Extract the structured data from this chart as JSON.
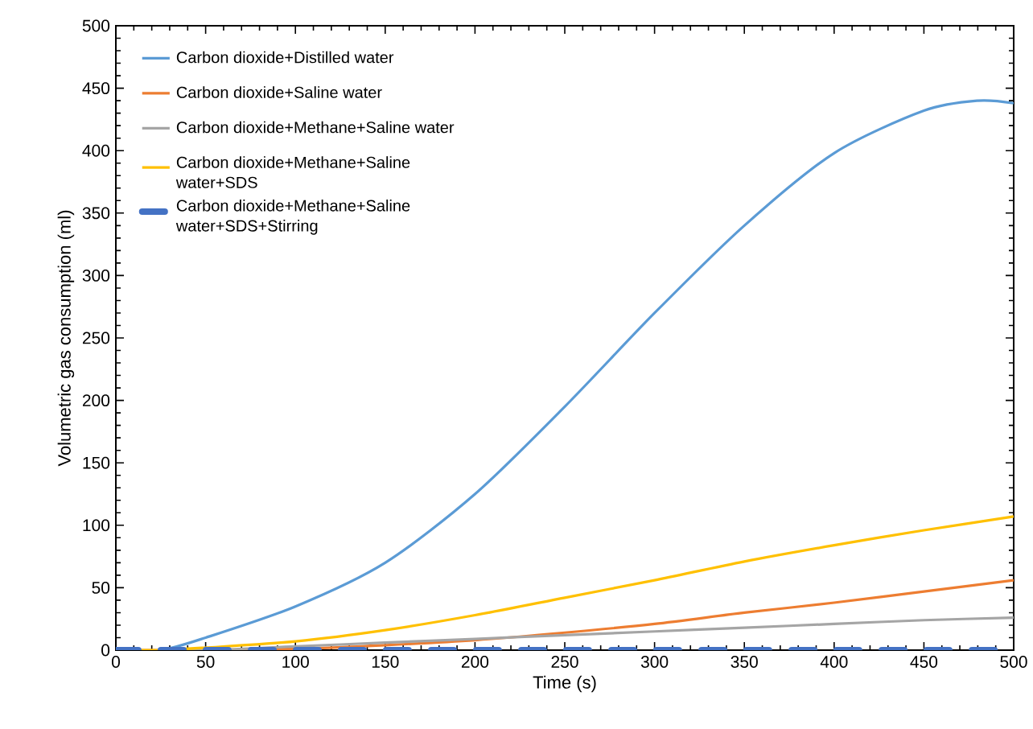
{
  "chart_data": {
    "type": "line",
    "xlabel": "Time (s)",
    "ylabel": "Volumetric gas consumption (ml)",
    "xlim": [
      0,
      500
    ],
    "ylim": [
      0,
      500
    ],
    "xticks": [
      0,
      50,
      100,
      150,
      200,
      250,
      300,
      350,
      400,
      450,
      500
    ],
    "yticks": [
      0,
      50,
      100,
      150,
      200,
      250,
      300,
      350,
      400,
      450,
      500
    ],
    "legend": "top left",
    "grid": false,
    "marker": "none",
    "series": [
      {
        "name": "Carbon dioxide+Distilled water",
        "color": "#5b9bd5",
        "x": [
          0,
          25,
          50,
          100,
          150,
          200,
          250,
          300,
          350,
          400,
          450,
          480,
          500
        ],
        "values": [
          0,
          0,
          10,
          35,
          70,
          125,
          195,
          270,
          340,
          398,
          432,
          440,
          438
        ]
      },
      {
        "name": "Carbon dioxide+Saline water",
        "color": "#ed7d31",
        "x": [
          0,
          50,
          100,
          150,
          200,
          250,
          300,
          350,
          400,
          450,
          500
        ],
        "values": [
          0,
          0,
          1,
          4,
          8,
          14,
          21,
          30,
          38,
          47,
          56
        ]
      },
      {
        "name": "Carbon dioxide+Methane+Saline water",
        "color": "#a5a5a5",
        "x": [
          0,
          50,
          100,
          150,
          200,
          250,
          300,
          350,
          400,
          450,
          500
        ],
        "values": [
          0,
          0,
          3,
          6,
          9,
          12,
          15,
          18,
          21,
          24,
          26
        ]
      },
      {
        "name": "Carbon dioxide+Methane+Saline water+SDS",
        "color": "#ffc000",
        "x": [
          0,
          25,
          50,
          100,
          150,
          200,
          250,
          300,
          350,
          400,
          450,
          500
        ],
        "values": [
          0,
          0,
          2,
          7,
          16,
          28,
          42,
          56,
          71,
          84,
          96,
          107
        ]
      },
      {
        "name": "Carbon dioxide+Methane+Saline water+SDS+Stirring",
        "color": "#4472c4",
        "line_style": "dashed",
        "x": [
          0,
          50,
          100,
          150,
          200,
          250,
          300,
          350,
          400,
          450,
          500
        ],
        "values": [
          0,
          0,
          0,
          0,
          0,
          0,
          0,
          0,
          0,
          0,
          0
        ]
      }
    ]
  }
}
